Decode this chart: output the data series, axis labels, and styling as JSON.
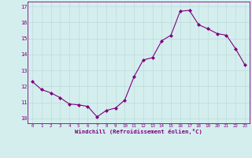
{
  "x": [
    0,
    1,
    2,
    3,
    4,
    5,
    6,
    7,
    8,
    9,
    10,
    11,
    12,
    13,
    14,
    15,
    16,
    17,
    18,
    19,
    20,
    21,
    22,
    23
  ],
  "y": [
    12.3,
    11.8,
    11.6,
    11.3,
    10.9,
    10.85,
    10.75,
    10.1,
    10.5,
    10.65,
    11.15,
    12.6,
    13.65,
    13.8,
    14.85,
    15.2,
    16.7,
    16.75,
    15.85,
    15.6,
    15.3,
    15.2,
    14.35,
    13.35
  ],
  "xlim": [
    -0.5,
    23.5
  ],
  "ylim": [
    9.7,
    17.3
  ],
  "yticks": [
    10,
    11,
    12,
    13,
    14,
    15,
    16,
    17
  ],
  "xticks": [
    0,
    1,
    2,
    3,
    4,
    5,
    6,
    7,
    8,
    9,
    10,
    11,
    12,
    13,
    14,
    15,
    16,
    17,
    18,
    19,
    20,
    21,
    22,
    23
  ],
  "xlabel": "Windchill (Refroidissement éolien,°C)",
  "line_color": "#800080",
  "marker_color": "#800080",
  "bg_color": "#d4eeee",
  "grid_color": "#b8d8d8",
  "tick_color": "#800080",
  "axis_label_color": "#800080"
}
